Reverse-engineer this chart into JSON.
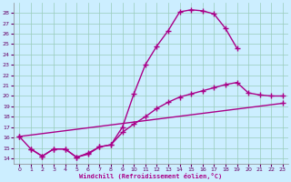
{
  "xlabel": "Windchill (Refroidissement éolien,°C)",
  "bg_color": "#cceeff",
  "line_color": "#aa0088",
  "grid_color": "#99ccbb",
  "xlim": [
    -0.5,
    23.5
  ],
  "ylim": [
    13.5,
    29.0
  ],
  "yticks": [
    14,
    15,
    16,
    17,
    18,
    19,
    20,
    21,
    22,
    23,
    24,
    25,
    26,
    27,
    28
  ],
  "xticks": [
    0,
    1,
    2,
    3,
    4,
    5,
    6,
    7,
    8,
    9,
    10,
    11,
    12,
    13,
    14,
    15,
    16,
    17,
    18,
    19,
    20,
    21,
    22,
    23
  ],
  "curve1_x": [
    0,
    1,
    2,
    3,
    4,
    5,
    6,
    7,
    8,
    9,
    10,
    11,
    12,
    13,
    14,
    15,
    16,
    17,
    18,
    19
  ],
  "curve1_y": [
    16.1,
    14.9,
    14.2,
    14.9,
    14.9,
    14.1,
    14.4,
    15.1,
    15.3,
    17.0,
    20.2,
    23.0,
    24.8,
    26.3,
    28.1,
    28.3,
    28.2,
    27.9,
    26.5,
    24.6
  ],
  "curve2_x": [
    1,
    2,
    3,
    4,
    5,
    6,
    7,
    8,
    9,
    10,
    11,
    12,
    13,
    14,
    15,
    16,
    17,
    18,
    19,
    20,
    21,
    22,
    23
  ],
  "curve2_y": [
    14.9,
    14.2,
    14.9,
    14.9,
    14.1,
    14.5,
    15.1,
    15.3,
    16.5,
    17.3,
    18.0,
    18.8,
    19.4,
    19.9,
    20.2,
    20.5,
    20.8,
    21.1,
    21.3,
    20.3,
    20.1,
    20.0,
    20.0
  ],
  "curve3_x": [
    0,
    23
  ],
  "curve3_y": [
    16.1,
    19.3
  ]
}
